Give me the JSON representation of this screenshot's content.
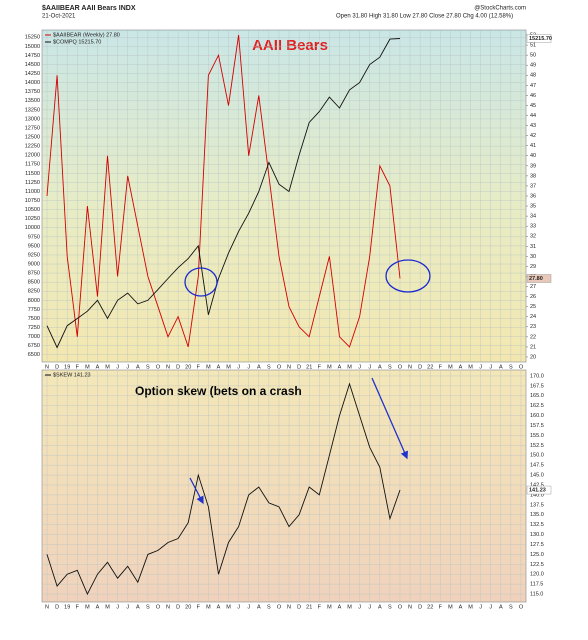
{
  "chart_data": [
    {
      "type": "line",
      "header_left": "$AAIIBEAR AAII Bears INDX",
      "date": "21-Oct-2021",
      "quote": "Open 31.80 High 31.80 Low 27.80 Close 27.80 Chg 4.00 (12.58%)",
      "source": "@StockCharts.com",
      "title": "AAII Bears",
      "grid": true,
      "categories": [
        "N",
        "D",
        "19",
        "F",
        "M",
        "A",
        "M",
        "J",
        "J",
        "A",
        "S",
        "O",
        "N",
        "D",
        "20",
        "F",
        "M",
        "A",
        "M",
        "J",
        "J",
        "A",
        "S",
        "O",
        "N",
        "D",
        "21",
        "F",
        "M",
        "A",
        "M",
        "J",
        "J",
        "A",
        "S",
        "O",
        "N",
        "D",
        "22",
        "F",
        "M",
        "A",
        "M",
        "J",
        "J",
        "A",
        "S",
        "O"
      ],
      "series": [
        {
          "name": "$AAIIBEAR (Weekly) 27.80",
          "color": "#d40000",
          "axis": "y2",
          "last_label": "27.80",
          "values": [
            36,
            48,
            30,
            22,
            35,
            26,
            40,
            28,
            38,
            33,
            28,
            25,
            22,
            24,
            21,
            28,
            48,
            50,
            45,
            52,
            40,
            46,
            38,
            30,
            25,
            23,
            22,
            26,
            30,
            22,
            21,
            24,
            30,
            39,
            37,
            27.8,
            null,
            null,
            null,
            null,
            null,
            null,
            null,
            null,
            null,
            null,
            null,
            null
          ]
        },
        {
          "name": "$COMPQ 15215.70",
          "color": "#111111",
          "last_label": "15215.70",
          "values": [
            7300,
            6700,
            7300,
            7500,
            7700,
            8000,
            7500,
            8000,
            8200,
            7900,
            8000,
            8300,
            8600,
            8900,
            9150,
            9500,
            7600,
            8600,
            9300,
            9900,
            10400,
            11000,
            11800,
            11200,
            11000,
            12000,
            12900,
            13200,
            13600,
            13300,
            13800,
            14000,
            14500,
            14700,
            15200,
            15215.7,
            null,
            null,
            null,
            null,
            null,
            null,
            null,
            null,
            null,
            null,
            null,
            null
          ]
        }
      ],
      "ylim": [
        6300,
        15450
      ],
      "yticks": [
        6500,
        6750,
        7000,
        7250,
        7500,
        7750,
        8000,
        8250,
        8500,
        8750,
        9000,
        9250,
        9500,
        9750,
        10000,
        10250,
        10500,
        10750,
        11000,
        11250,
        11500,
        11750,
        12000,
        12250,
        12500,
        12750,
        13000,
        13250,
        13500,
        13750,
        14000,
        14250,
        14500,
        14750,
        15000,
        15250
      ],
      "y2lim": [
        19.5,
        52.5
      ],
      "y2ticks": [
        20,
        21,
        22,
        23,
        24,
        25,
        26,
        27,
        28,
        29,
        30,
        31,
        32,
        33,
        34,
        35,
        36,
        37,
        38,
        39,
        40,
        41,
        42,
        43,
        44,
        45,
        46,
        47,
        48,
        49,
        50,
        51,
        52
      ]
    },
    {
      "type": "line",
      "annotation": "Option skew (bets on a crash",
      "grid": true,
      "y_axis_side": "right",
      "categories": [
        "N",
        "D",
        "19",
        "F",
        "M",
        "A",
        "M",
        "J",
        "J",
        "A",
        "S",
        "O",
        "N",
        "D",
        "20",
        "F",
        "M",
        "A",
        "M",
        "J",
        "J",
        "A",
        "S",
        "O",
        "N",
        "D",
        "21",
        "F",
        "M",
        "A",
        "M",
        "J",
        "J",
        "A",
        "S",
        "O",
        "N",
        "D",
        "22",
        "F",
        "M",
        "A",
        "M",
        "J",
        "J",
        "A",
        "S",
        "O"
      ],
      "series": [
        {
          "name": "$SKEW 141.23",
          "color": "#111111",
          "last_label": "141.23",
          "values": [
            125,
            117,
            120,
            121,
            115,
            120,
            123,
            119,
            122,
            118,
            125,
            126,
            128,
            129,
            133,
            145,
            137,
            120,
            128,
            132,
            140,
            142,
            138,
            137,
            132,
            135,
            142,
            140,
            150,
            160,
            168,
            160,
            152,
            147,
            134,
            141.23,
            null,
            null,
            null,
            null,
            null,
            null,
            null,
            null,
            null,
            null,
            null,
            null
          ]
        }
      ],
      "ylim": [
        113,
        171.5
      ],
      "yticks": [
        {
          "value": 115,
          "label": "115.0"
        },
        117.5,
        {
          "value": 120,
          "label": "120.0"
        },
        122.5,
        {
          "value": 125,
          "label": "125.0"
        },
        127.5,
        {
          "value": 130,
          "label": "130.0"
        },
        132.5,
        {
          "value": 135,
          "label": "135.0"
        },
        137.5,
        {
          "value": 140,
          "label": "140.0"
        },
        142.5,
        {
          "value": 145,
          "label": "145.0"
        },
        147.5,
        {
          "value": 150,
          "label": "150.0"
        },
        152.5,
        {
          "value": 155,
          "label": "155.0"
        },
        157.5,
        {
          "value": 160,
          "label": "160.0"
        },
        162.5,
        {
          "value": 165,
          "label": "165.0"
        },
        167.5,
        {
          "value": 170,
          "label": "170.0"
        }
      ]
    }
  ]
}
